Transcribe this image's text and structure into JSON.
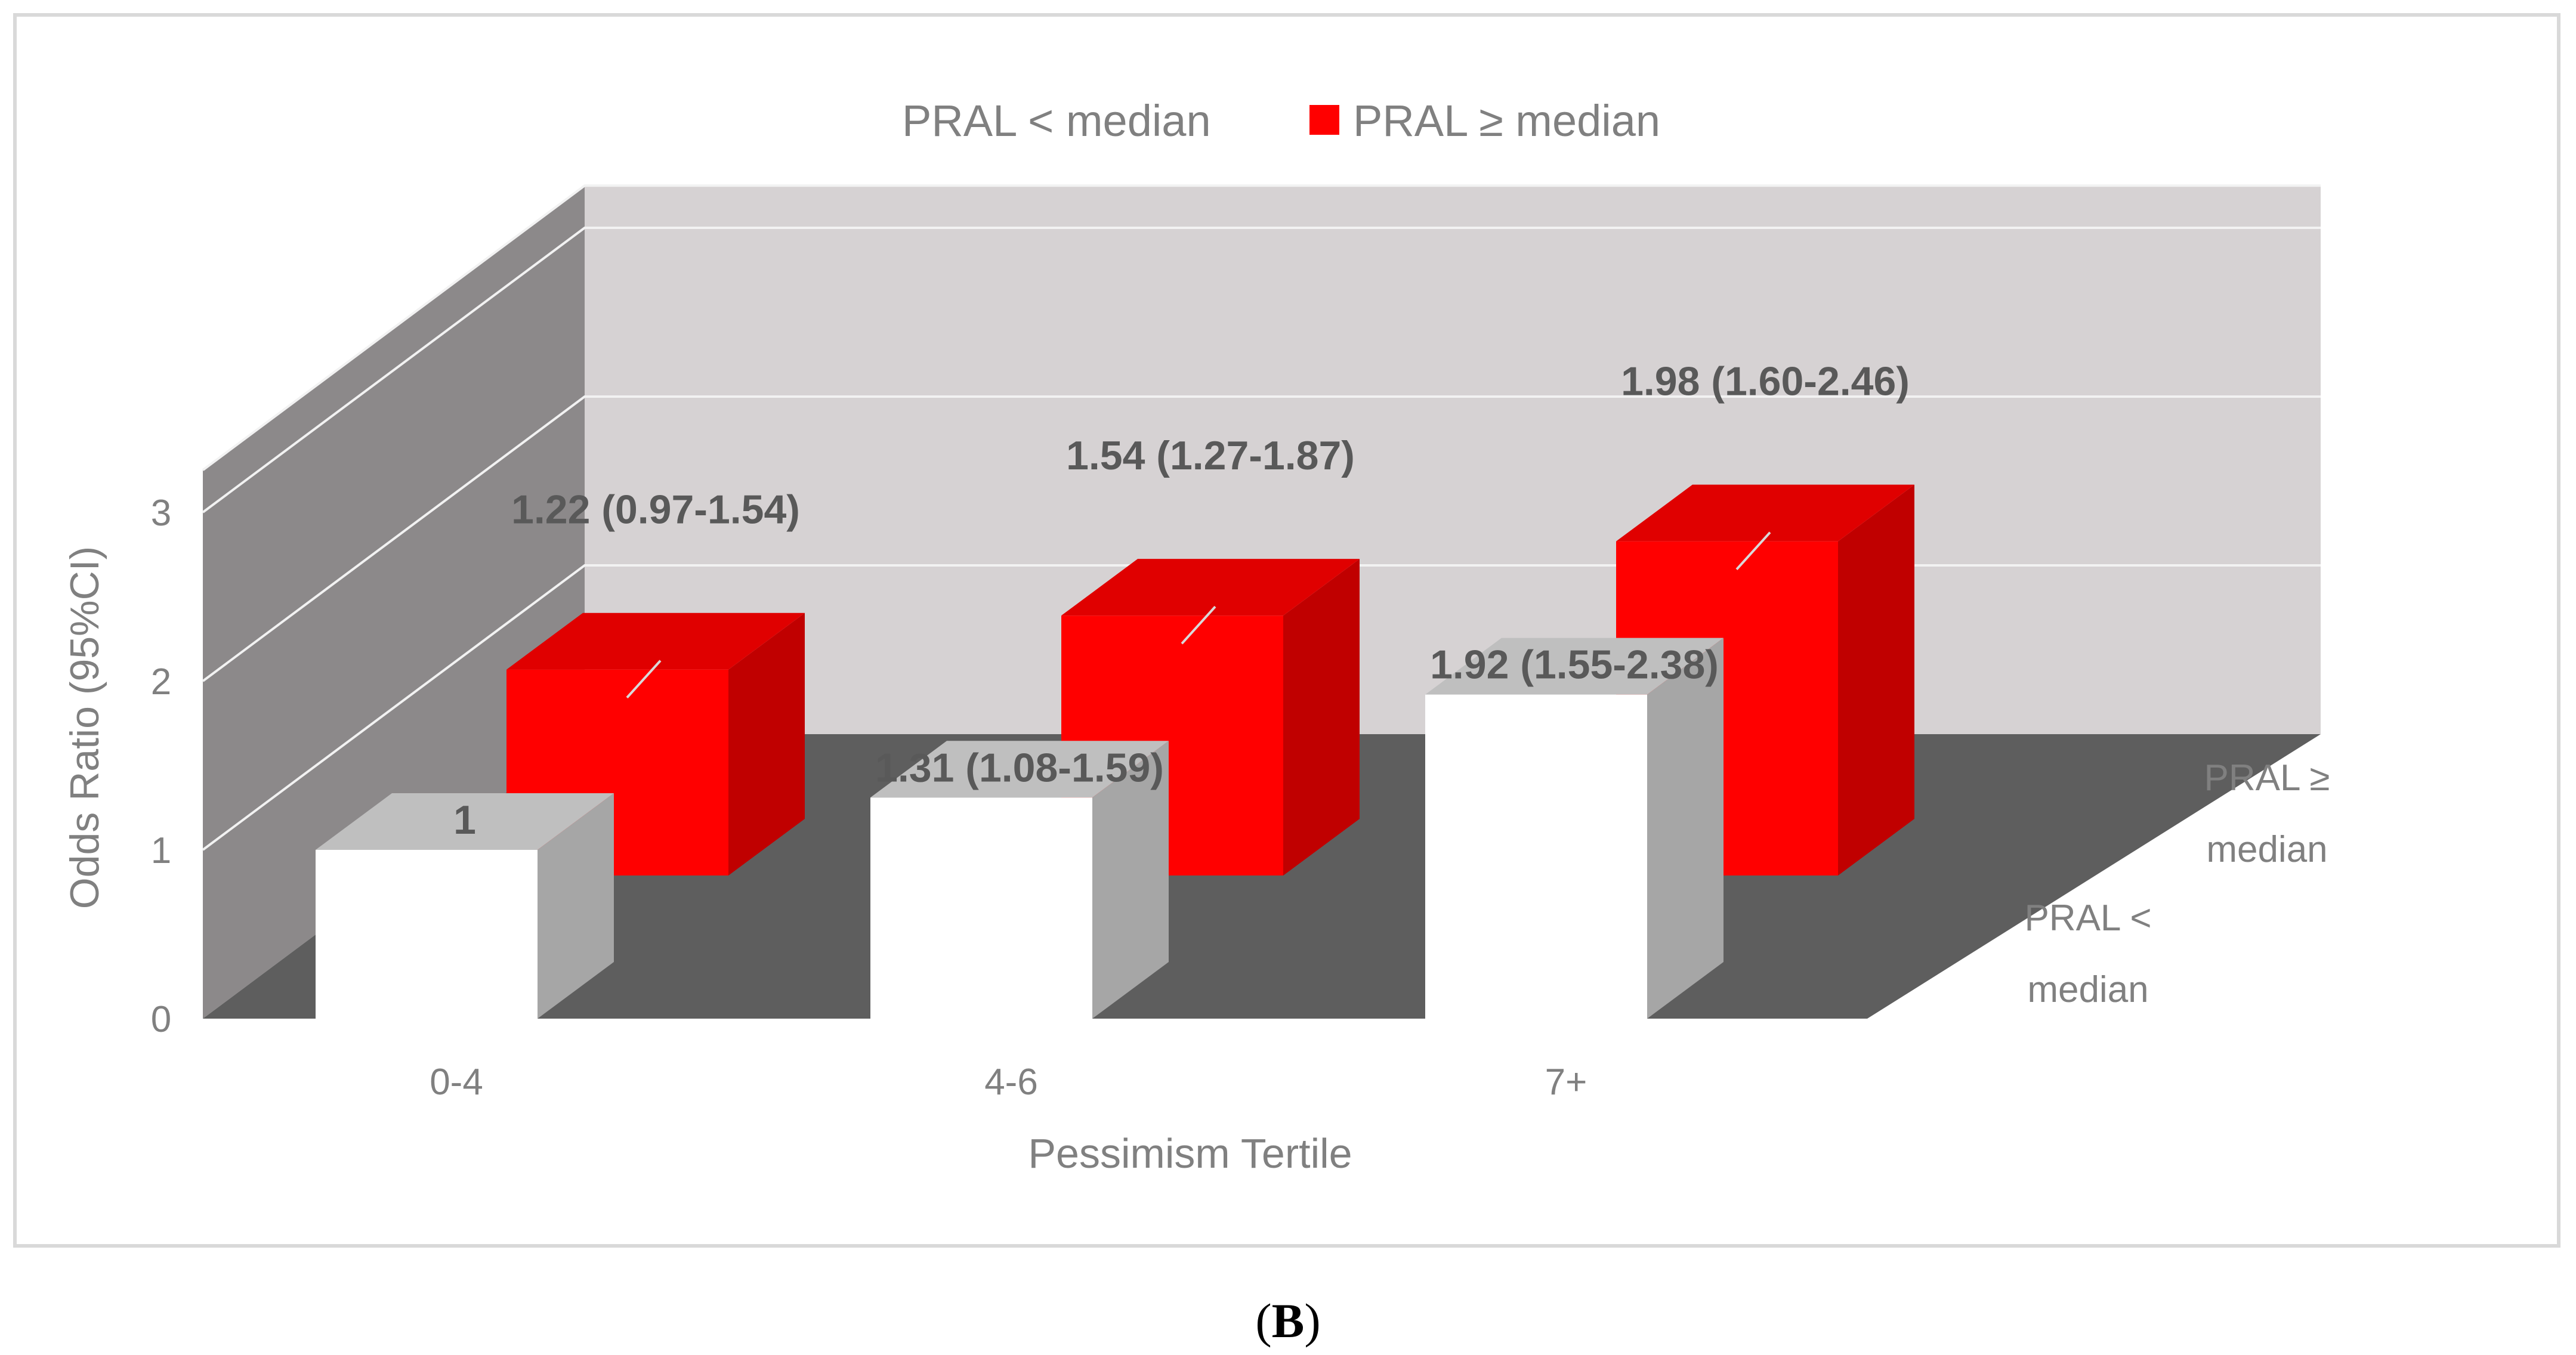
{
  "figure": {
    "label_open": "(",
    "label_letter": "B",
    "label_close": ")"
  },
  "colors": {
    "back_wall": "#d6d2d3",
    "side_wall": "#8c898a",
    "floor": "#5e5e5e",
    "grid": "#f2f2f2",
    "text": "#808080",
    "data_label": "#595959",
    "series_low_front": "#ffffff",
    "series_low_top": "#bfbfbf",
    "series_low_side": "#a6a6a6",
    "series_high_front": "#ff0000",
    "series_high_top": "#e00000",
    "series_high_side": "#c00000"
  },
  "chart_data": {
    "type": "bar",
    "subtype": "3d-clustered-column",
    "title": "",
    "xlabel": "Pessimism Tertile",
    "ylabel": "Odds Ratio (95%CI)",
    "ylim": [
      0,
      3
    ],
    "yticks": [
      "0",
      "1",
      "2",
      "3"
    ],
    "categories": [
      "0-4",
      "4-6",
      "7+"
    ],
    "depth_labels": [
      [
        "PRAL <",
        "median"
      ],
      [
        "PRAL ≥",
        "median"
      ]
    ],
    "legend": {
      "position": "top",
      "entries": [
        "PRAL < median",
        "PRAL ≥ median"
      ]
    },
    "grid": true,
    "series": [
      {
        "name": "PRAL < median",
        "values": [
          1,
          1.31,
          1.92
        ],
        "labels": [
          "1",
          "1.31 (1.08-1.59)",
          "1.92 (1.55-2.38)"
        ]
      },
      {
        "name": "PRAL ≥ median",
        "values": [
          1.22,
          1.54,
          1.98
        ],
        "labels": [
          "1.22 (0.97-1.54)",
          "1.54 (1.27-1.87)",
          "1.98 (1.60-2.46)"
        ]
      }
    ]
  }
}
